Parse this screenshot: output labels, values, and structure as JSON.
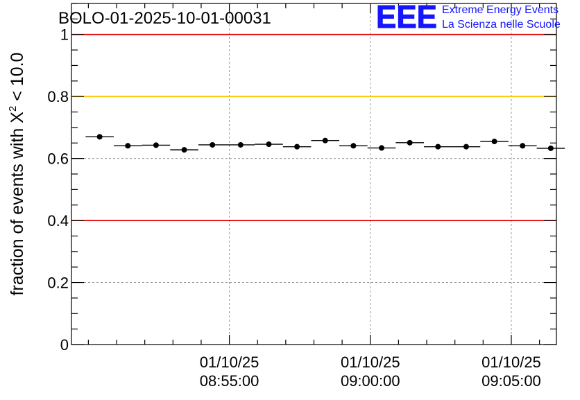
{
  "chart_data": {
    "type": "scatter",
    "title": "BOLO-01-2025-10-01-00031",
    "ylabel_prefix": "fraction of events with ",
    "ylabel_symbol": "X",
    "ylabel_sup": "2",
    "ylabel_suffix": " < 10.0",
    "logo": {
      "mark": "EEE",
      "line1": "Extreme Energy Events",
      "line2": "La Scienza nelle Scuole",
      "color": "#1515ff"
    },
    "ylim": [
      0,
      1.1
    ],
    "y_ticks": [
      0,
      0.2,
      0.4,
      0.6,
      0.8,
      1
    ],
    "y_tick_labels": [
      "0",
      "0.2",
      "0.4",
      "0.6",
      "0.8",
      "1"
    ],
    "xlim_minutes": [
      -5.6,
      11.6
    ],
    "x_ticks_minutes": [
      0,
      5,
      10
    ],
    "x_tick_labels": [
      [
        "01/10/25",
        "08:55:00"
      ],
      [
        "01/10/25",
        "09:00:00"
      ],
      [
        "01/10/25",
        "09:05:00"
      ]
    ],
    "reference_lines": [
      {
        "y": 1.0,
        "color": "#e00000"
      },
      {
        "y": 0.8,
        "color": "#ffc400"
      },
      {
        "y": 0.4,
        "color": "#e00000"
      }
    ],
    "series": [
      {
        "name": "fraction",
        "bin_width_minutes": 1.0,
        "x_minutes": [
          -4.6,
          -3.6,
          -2.6,
          -1.6,
          -0.6,
          0.4,
          1.4,
          2.4,
          3.4,
          4.4,
          5.4,
          6.4,
          7.4,
          8.4,
          9.4,
          10.4,
          11.4
        ],
        "y": [
          0.67,
          0.641,
          0.643,
          0.628,
          0.644,
          0.644,
          0.646,
          0.638,
          0.658,
          0.641,
          0.634,
          0.651,
          0.638,
          0.638,
          0.655,
          0.641,
          0.633
        ],
        "y_err": [
          0.006,
          0.006,
          0.006,
          0.006,
          0.006,
          0.006,
          0.006,
          0.006,
          0.006,
          0.006,
          0.006,
          0.006,
          0.006,
          0.006,
          0.006,
          0.006,
          0.006
        ]
      }
    ],
    "grid": true
  }
}
